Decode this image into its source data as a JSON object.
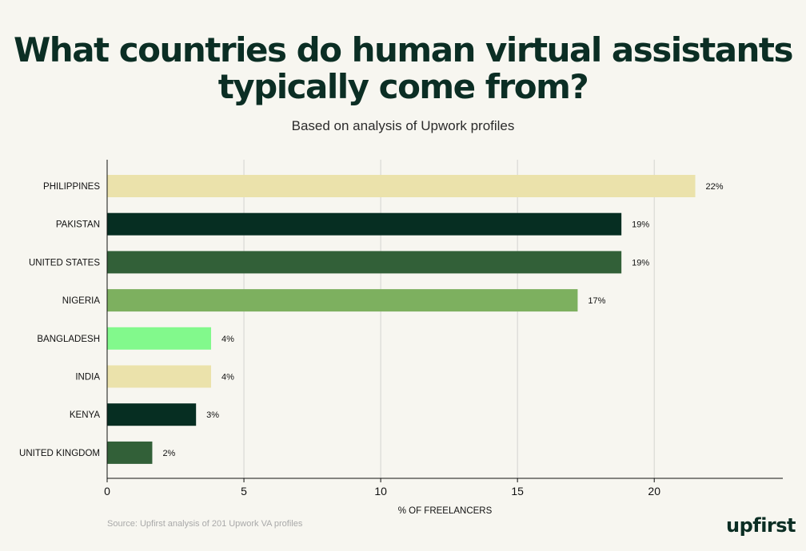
{
  "title": "What countries do human virtual assistants typically come from?",
  "subtitle": "Based on analysis of Upwork profiles",
  "source": "Source: Upfirst analysis of 201 Upwork VA profiles",
  "logo": "upfirst",
  "colors": {
    "background": "#f7f6f0",
    "title": "#0b2e24",
    "bars": [
      "#ebe2ab",
      "#062e22",
      "#326038",
      "#7db05f",
      "#82f98c",
      "#ebe2ab",
      "#062e22",
      "#326038"
    ]
  },
  "chart_data": {
    "type": "bar",
    "orientation": "horizontal",
    "categories": [
      "PHILIPPINES",
      "PAKISTAN",
      "UNITED STATES",
      "NIGERIA",
      "BANGLADESH",
      "INDIA",
      "KENYA",
      "UNITED KINGDOM"
    ],
    "values": [
      21.5,
      18.8,
      18.8,
      17.2,
      3.8,
      3.8,
      3.25,
      1.65
    ],
    "data_labels": [
      "22%",
      "19%",
      "19%",
      "17%",
      "4%",
      "4%",
      "3%",
      "2%"
    ],
    "xlabel": "% OF FREELANCERS",
    "ylabel": "",
    "xlim": [
      0,
      24.7
    ],
    "xticks": [
      0,
      5,
      10,
      15,
      20
    ],
    "grid": true
  }
}
